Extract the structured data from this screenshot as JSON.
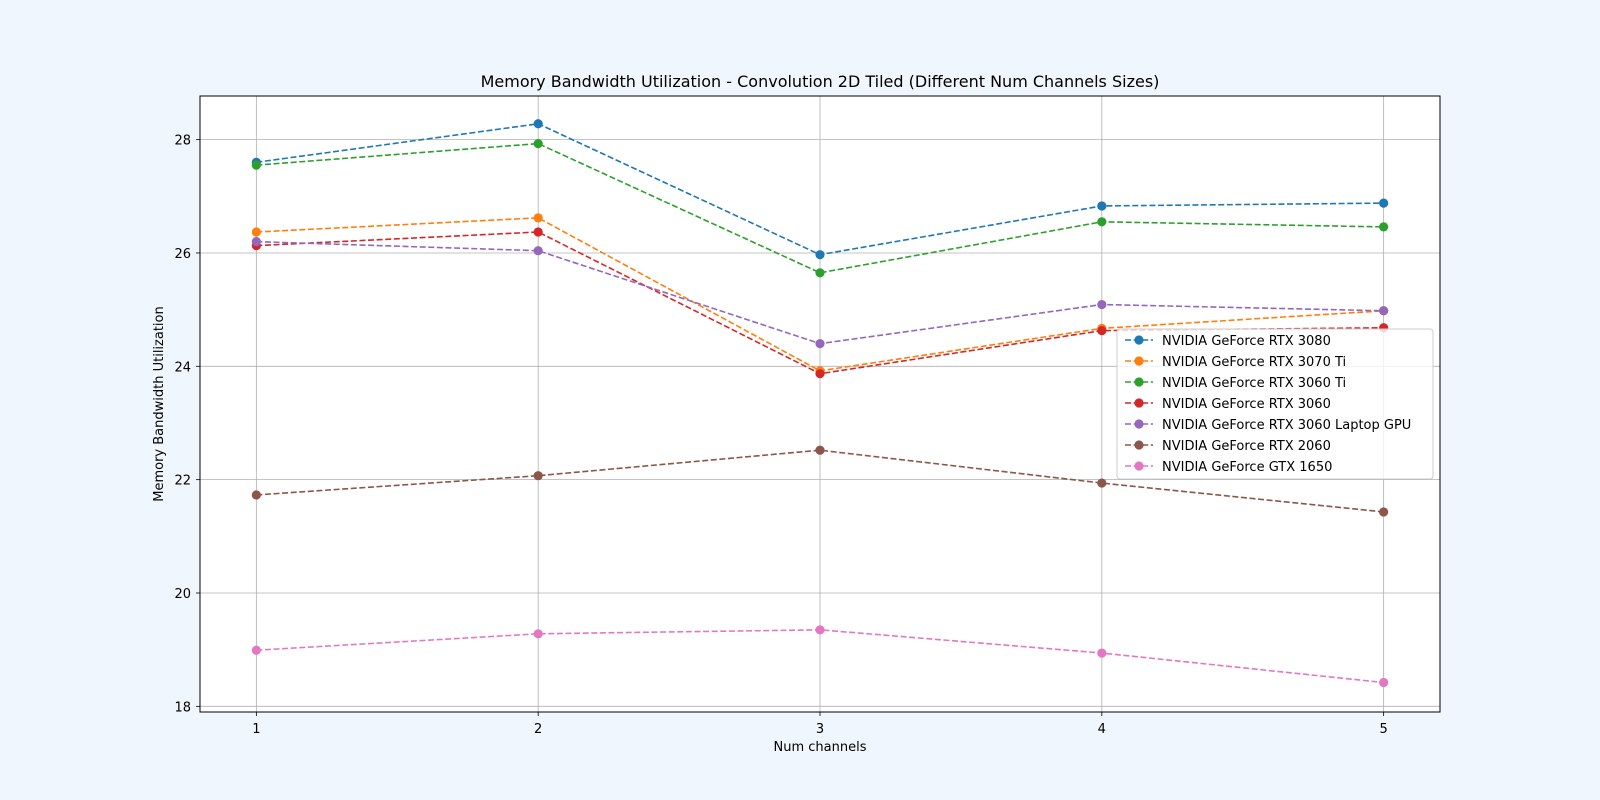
{
  "chart_data": {
    "type": "line",
    "title": "Memory Bandwidth Utilization - Convolution 2D Tiled (Different Num Channels Sizes)",
    "xlabel": "Num channels",
    "ylabel": "Memory Bandwidth Utilization",
    "x": [
      1,
      2,
      3,
      4,
      5
    ],
    "x_ticks": [
      "1",
      "2",
      "3",
      "4",
      "5"
    ],
    "y_ticks": [
      "18",
      "20",
      "22",
      "24",
      "26",
      "28"
    ],
    "xlim": [
      0.8,
      5.2
    ],
    "ylim": [
      17.9,
      28.77
    ],
    "grid": true,
    "legend_position": "center-right",
    "line_style": "dashed",
    "marker": "circle",
    "series": [
      {
        "name": "NVIDIA GeForce RTX 3080",
        "color": "#1f77b4",
        "values": [
          27.6,
          28.28,
          25.97,
          26.83,
          26.88
        ]
      },
      {
        "name": "NVIDIA GeForce RTX 3070 Ti",
        "color": "#ff7f0e",
        "values": [
          26.37,
          26.62,
          23.92,
          24.67,
          24.98
        ]
      },
      {
        "name": "NVIDIA GeForce RTX 3060 Ti",
        "color": "#2ca02c",
        "values": [
          27.55,
          27.93,
          25.65,
          26.55,
          26.46
        ]
      },
      {
        "name": "NVIDIA GeForce RTX 3060",
        "color": "#d62728",
        "values": [
          26.13,
          26.37,
          23.87,
          24.63,
          24.68
        ]
      },
      {
        "name": "NVIDIA GeForce RTX 3060 Laptop GPU",
        "color": "#9467bd",
        "values": [
          26.2,
          26.04,
          24.4,
          25.09,
          24.98
        ]
      },
      {
        "name": "NVIDIA GeForce RTX 2060",
        "color": "#8c564b",
        "values": [
          21.73,
          22.07,
          22.52,
          21.94,
          21.43
        ]
      },
      {
        "name": "NVIDIA GeForce GTX 1650",
        "color": "#e377c2",
        "values": [
          18.99,
          19.28,
          19.35,
          18.94,
          18.42
        ]
      }
    ]
  }
}
